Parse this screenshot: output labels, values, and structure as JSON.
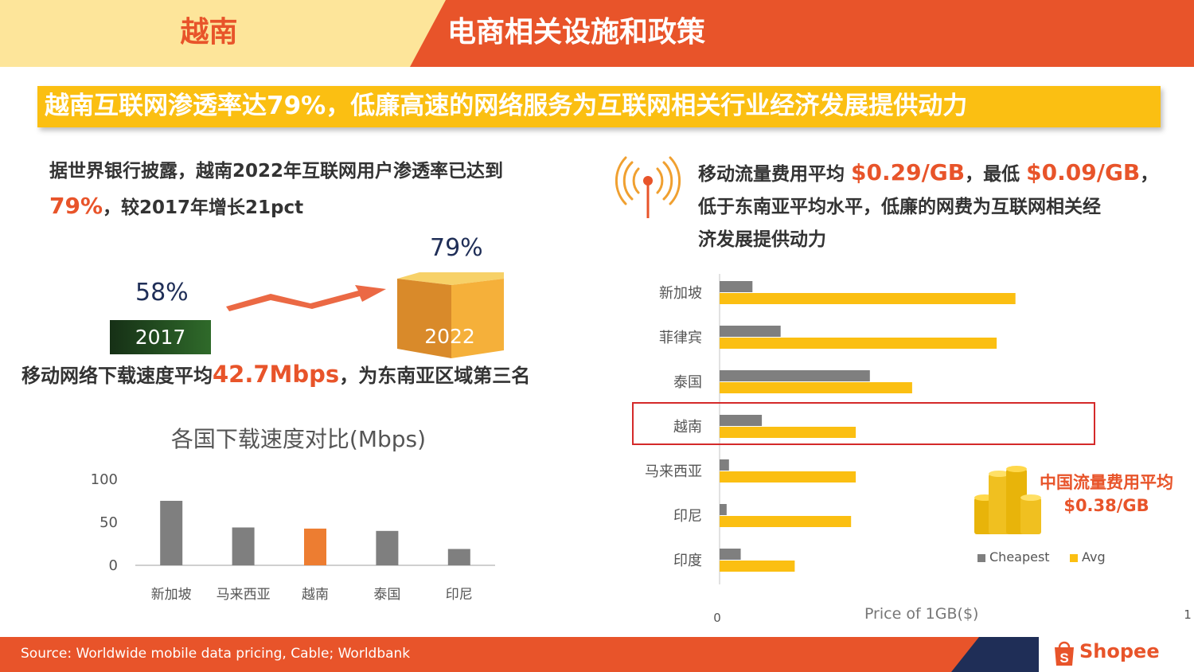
{
  "header": {
    "country": "越南",
    "title": "电商相关设施和政策"
  },
  "banner": "越南互联网渗透率达79%，低廉高速的网络服务为互联网相关行业经济发展提供动力",
  "left_para": {
    "line1": "据世界银行披露，越南2022年互联网用户渗透率已达到",
    "line2_highlight": "79%",
    "line2_rest": "，较2017年增长21pct"
  },
  "penetration": {
    "year_2017": "2017",
    "pct_2017": "58%",
    "year_2022": "2022",
    "pct_2022": "79%"
  },
  "speed_line": {
    "prefix": "移动网络下载速度平均",
    "highlight": "42.7Mbps",
    "suffix": "，为东南亚区域第三名"
  },
  "right_para": {
    "l1_prefix": "移动流量费用平均 ",
    "l1_avg": "$0.29/GB",
    "l1_mid": "，最低 ",
    "l1_min": "$0.09/GB",
    "l1_end": "，",
    "line2": "低于东南亚平均水平，低廉的网费为互联网相关经",
    "line3": "济发展提供动力"
  },
  "china_note": {
    "line1": "中国流量费用平均",
    "line2": "$0.38/GB"
  },
  "colors": {
    "accent_orange": "#e8542a",
    "yellow": "#fbbf12",
    "gray_bar": "#7f7f7f",
    "vietnam_bar": "#ed7d31",
    "navy": "#1f2e57",
    "highlight_box": "#d42a2a"
  },
  "icons": [
    "signal-tower-icon",
    "coin-stack-icon",
    "shopee-bag-icon",
    "arrow-up-icon"
  ],
  "chart_data": [
    {
      "type": "bar",
      "title": "各国下载速度对比(Mbps)",
      "categories": [
        "新加坡",
        "马来西亚",
        "越南",
        "泰国",
        "印尼"
      ],
      "values": [
        75,
        44,
        42.7,
        40,
        19
      ],
      "yticks": [
        "0",
        "50",
        "100"
      ],
      "ylim": [
        0,
        100
      ],
      "highlight": "越南",
      "grid": false
    },
    {
      "type": "bar",
      "orientation": "horizontal",
      "xlabel": "Price of 1GB($)",
      "xticks": [
        "0",
        "1"
      ],
      "xlim": [
        0,
        1
      ],
      "categories": [
        "新加坡",
        "菲律宾",
        "泰国",
        "越南",
        "马来西亚",
        "印尼",
        "印度"
      ],
      "series": [
        {
          "name": "Cheapest",
          "values": [
            0.07,
            0.13,
            0.32,
            0.09,
            0.02,
            0.015,
            0.045
          ]
        },
        {
          "name": "Avg",
          "values": [
            0.63,
            0.59,
            0.41,
            0.29,
            0.29,
            0.28,
            0.16
          ]
        }
      ],
      "highlight": "越南",
      "legend": "bottom-right",
      "grid": false
    }
  ]
}
